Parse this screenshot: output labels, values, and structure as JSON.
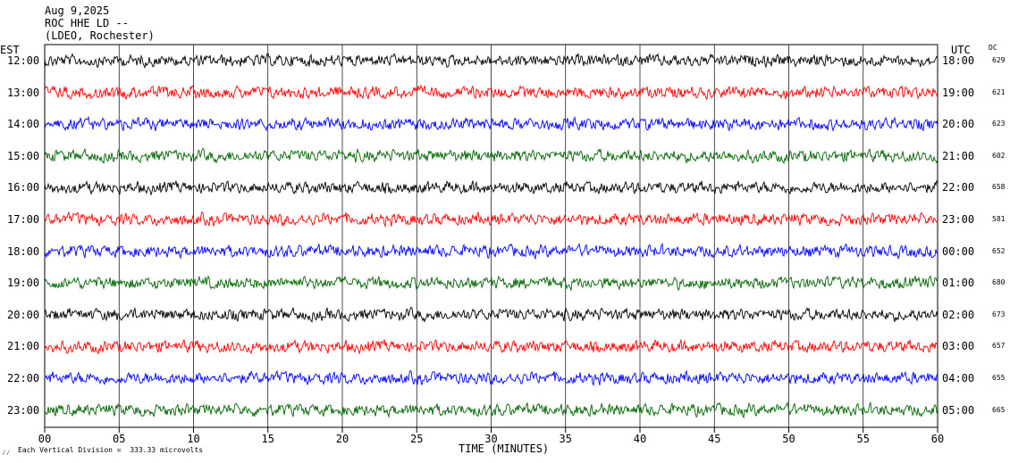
{
  "header": {
    "date": "Aug 9,2025",
    "station": "ROC HHE LD --",
    "network": "(LDEO, Rochester)"
  },
  "left_timezone": "EST",
  "right_timezone": "UTC",
  "dc_header": "DC",
  "footer": {
    "mark": "⁄⁄",
    "scale_note": "Each Vertical Division =  333.33 microvolts"
  },
  "colors": {
    "black": "#000000",
    "red": "#ff0000",
    "blue": "#0000ff",
    "green": "#006400"
  },
  "chart_data": {
    "type": "line",
    "title": "",
    "xlabel": "TIME (MINUTES)",
    "xlim": [
      0,
      60
    ],
    "x_ticks": [
      "00",
      "05",
      "10",
      "15",
      "20",
      "25",
      "30",
      "35",
      "40",
      "45",
      "50",
      "55",
      "60"
    ],
    "grid": true,
    "units_per_division_microvolts": 333.33,
    "traces": [
      {
        "est": "12:00",
        "utc": "18:00",
        "dc": "629",
        "color": "black"
      },
      {
        "est": "13:00",
        "utc": "19:00",
        "dc": "621",
        "color": "red"
      },
      {
        "est": "14:00",
        "utc": "20:00",
        "dc": "623",
        "color": "blue"
      },
      {
        "est": "15:00",
        "utc": "21:00",
        "dc": "602",
        "color": "green"
      },
      {
        "est": "16:00",
        "utc": "22:00",
        "dc": "658",
        "color": "black"
      },
      {
        "est": "17:00",
        "utc": "23:00",
        "dc": "581",
        "color": "red"
      },
      {
        "est": "18:00",
        "utc": "00:00",
        "dc": "652",
        "color": "blue"
      },
      {
        "est": "19:00",
        "utc": "01:00",
        "dc": "680",
        "color": "green"
      },
      {
        "est": "20:00",
        "utc": "02:00",
        "dc": "673",
        "color": "black"
      },
      {
        "est": "21:00",
        "utc": "03:00",
        "dc": "657",
        "color": "red"
      },
      {
        "est": "22:00",
        "utc": "04:00",
        "dc": "655",
        "color": "blue"
      },
      {
        "est": "23:00",
        "utc": "05:00",
        "dc": "665",
        "color": "green"
      }
    ]
  }
}
